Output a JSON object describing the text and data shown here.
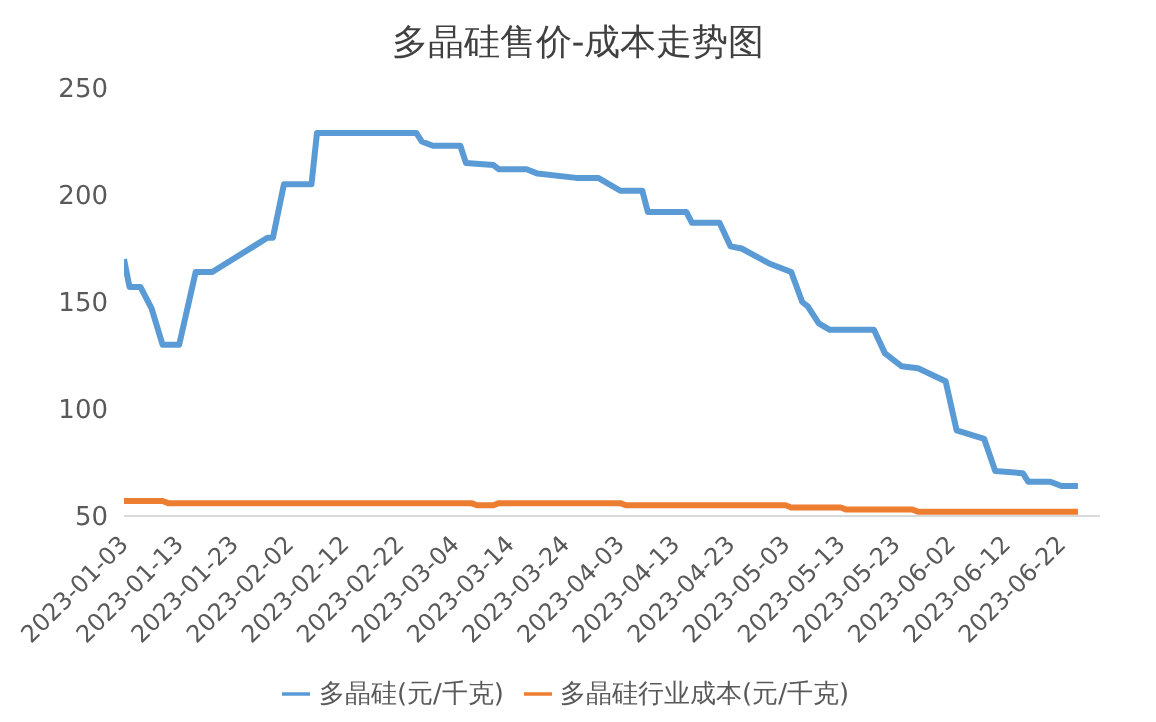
{
  "chart_data": {
    "type": "line",
    "title": "多晶硅售价-成本走势图",
    "x": [
      "2023-01-03",
      "2023-01-04",
      "2023-01-06",
      "2023-01-08",
      "2023-01-10",
      "2023-01-13",
      "2023-01-16",
      "2023-01-19",
      "2023-01-29",
      "2023-01-30",
      "2023-02-01",
      "2023-02-06",
      "2023-02-07",
      "2023-02-25",
      "2023-02-26",
      "2023-02-28",
      "2023-03-05",
      "2023-03-06",
      "2023-03-11",
      "2023-03-12",
      "2023-03-17",
      "2023-03-19",
      "2023-03-26",
      "2023-03-30",
      "2023-04-03",
      "2023-04-07",
      "2023-04-08",
      "2023-04-15",
      "2023-04-16",
      "2023-04-21",
      "2023-04-23",
      "2023-04-25",
      "2023-04-30",
      "2023-05-04",
      "2023-05-06",
      "2023-05-07",
      "2023-05-09",
      "2023-05-11",
      "2023-05-19",
      "2023-05-21",
      "2023-05-24",
      "2023-05-27",
      "2023-06-01",
      "2023-06-03",
      "2023-06-08",
      "2023-06-10",
      "2023-06-15",
      "2023-06-16",
      "2023-06-20",
      "2023-06-22",
      "2023-06-25"
    ],
    "series": [
      {
        "name": "多晶硅(元/千克)",
        "color": "#5b9bd5",
        "values": [
          170,
          157,
          157,
          147,
          130,
          130,
          164,
          164,
          180,
          180,
          205,
          205,
          229,
          229,
          225,
          223,
          223,
          215,
          214,
          212,
          212,
          210,
          208,
          208,
          202,
          202,
          192,
          192,
          187,
          187,
          176,
          175,
          168,
          164,
          150,
          148,
          140,
          137,
          137,
          126,
          120,
          119,
          113,
          90,
          86,
          71,
          70,
          66,
          66,
          64,
          64
        ]
      },
      {
        "name": "多晶硅行业成本(元/千克)",
        "color": "#ed7d31",
        "x": [
          "2023-01-03",
          "2023-01-10",
          "2023-01-11",
          "2023-03-07",
          "2023-03-08",
          "2023-03-11",
          "2023-03-12",
          "2023-04-03",
          "2023-04-04",
          "2023-05-03",
          "2023-05-04",
          "2023-05-13",
          "2023-05-14",
          "2023-05-26",
          "2023-05-27",
          "2023-06-25"
        ],
        "values": [
          57,
          57,
          56,
          56,
          55,
          55,
          56,
          56,
          55,
          55,
          54,
          54,
          53,
          53,
          52,
          52
        ]
      }
    ],
    "xlim": [
      "2023-01-03",
      "2023-06-29"
    ],
    "xticks": [
      "2023-01-03",
      "2023-01-13",
      "2023-01-23",
      "2023-02-02",
      "2023-02-12",
      "2023-02-22",
      "2023-03-04",
      "2023-03-14",
      "2023-03-24",
      "2023-04-03",
      "2023-04-13",
      "2023-04-23",
      "2023-05-03",
      "2023-05-13",
      "2023-05-23",
      "2023-06-02",
      "2023-06-12",
      "2023-06-22"
    ],
    "ylim": [
      50,
      250
    ],
    "yticks": [
      50,
      100,
      150,
      200,
      250
    ],
    "grid": false,
    "legend": "bottom",
    "marker": "none",
    "line_style": "solid"
  }
}
